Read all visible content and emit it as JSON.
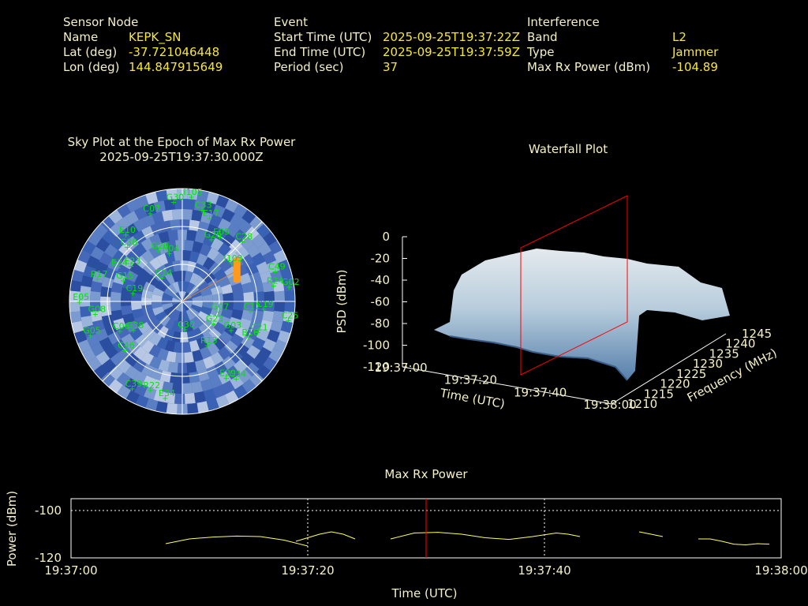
{
  "info": {
    "sensor": {
      "header": "Sensor Node",
      "name_label": "Name",
      "name": "KEPK_SN",
      "lat_label": "Lat (deg)",
      "lat": "-37.721046448",
      "lon_label": "Lon (deg)",
      "lon": "144.847915649"
    },
    "event": {
      "header": "Event",
      "start_label": "Start Time (UTC)",
      "start": "2025-09-25T19:37:22Z",
      "end_label": "End Time (UTC)",
      "end": "2025-09-25T19:37:59Z",
      "period_label": "Period (sec)",
      "period": "37"
    },
    "interference": {
      "header": "Interference",
      "band_label": "Band",
      "band": "L2",
      "type_label": "Type",
      "type": "Jammer",
      "power_label": "Max Rx Power (dBm)",
      "power": "-104.89"
    }
  },
  "colors": {
    "text": "#f5f0c8",
    "value": "#f5e63c",
    "sat": "#00e600",
    "marker": "#ff0000",
    "line": "#ffff66"
  },
  "chart_data": [
    {
      "type": "scatter",
      "title": "Sky Plot at the Epoch of Max Rx Power",
      "subtitle": "2025-09-25T19:37:30.000Z",
      "projection": "polar",
      "satellites": [
        {
          "id": "I105",
          "az": 5,
          "el": 84
        },
        {
          "id": "C07",
          "az": 340,
          "el": 75
        },
        {
          "id": "G30",
          "az": 355,
          "el": 80
        },
        {
          "id": "C33",
          "az": 12,
          "el": 75
        },
        {
          "id": "E10",
          "az": 320,
          "el": 70
        },
        {
          "id": "C38",
          "az": 315,
          "el": 62
        },
        {
          "id": "E17",
          "az": 18,
          "el": 70
        },
        {
          "id": "C28",
          "az": 45,
          "el": 68
        },
        {
          "id": "E09",
          "az": 30,
          "el": 60
        },
        {
          "id": "G26",
          "az": 25,
          "el": 55
        },
        {
          "id": "E34",
          "az": 298,
          "el": 58
        },
        {
          "id": "E23",
          "az": 305,
          "el": 50
        },
        {
          "id": "G20",
          "az": 335,
          "el": 45
        },
        {
          "id": "R04",
          "az": 345,
          "el": 40
        },
        {
          "id": "I103",
          "az": 52,
          "el": 50
        },
        {
          "id": "C49",
          "az": 72,
          "el": 78
        },
        {
          "id": "R24",
          "az": 80,
          "el": 74
        },
        {
          "id": "G02",
          "az": 82,
          "el": 86
        },
        {
          "id": "G15",
          "az": 290,
          "el": 50
        },
        {
          "id": "R17",
          "az": 285,
          "el": 70
        },
        {
          "id": "C19",
          "az": 280,
          "el": 40
        },
        {
          "id": "C14",
          "az": 320,
          "el": 25
        },
        {
          "id": "E05",
          "az": 270,
          "el": 82
        },
        {
          "id": "G08",
          "az": 262,
          "el": 70
        },
        {
          "id": "G05",
          "az": 250,
          "el": 78
        },
        {
          "id": "C06",
          "az": 245,
          "el": 55
        },
        {
          "id": "G38",
          "az": 240,
          "el": 45
        },
        {
          "id": "C46",
          "az": 230,
          "el": 60
        },
        {
          "id": "C39",
          "az": 210,
          "el": 80
        },
        {
          "id": "R22",
          "az": 200,
          "el": 75
        },
        {
          "id": "E34",
          "az": 190,
          "el": 78
        },
        {
          "id": "C30",
          "az": 175,
          "el": 22
        },
        {
          "id": "R13",
          "az": 150,
          "el": 40
        },
        {
          "id": "G23",
          "az": 125,
          "el": 30
        },
        {
          "id": "G03",
          "az": 120,
          "el": 45
        },
        {
          "id": "B16",
          "az": 118,
          "el": 60
        },
        {
          "id": "C21",
          "az": 112,
          "el": 65
        },
        {
          "id": "C25",
          "az": 100,
          "el": 86
        },
        {
          "id": "C19",
          "az": 95,
          "el": 65
        },
        {
          "id": "E29",
          "az": 150,
          "el": 70
        },
        {
          "id": "C34",
          "az": 145,
          "el": 75
        },
        {
          "id": "G07",
          "az": 105,
          "el": 30
        },
        {
          "id": "C12",
          "az": 98,
          "el": 55
        }
      ],
      "interferer_direction_az": 60
    },
    {
      "type": "area",
      "title": "Waterfall Plot",
      "xlabel": "Time (UTC)",
      "ylabel": "Frequency (MHz)",
      "zlabel": "PSD (dBm)",
      "x_ticks": [
        "19:37:00",
        "19:37:20",
        "19:37:40",
        "19:38:00"
      ],
      "y_ticks": [
        1210,
        1215,
        1220,
        1225,
        1230,
        1235,
        1240,
        1245
      ],
      "z_ticks": [
        0,
        -20,
        -40,
        -60,
        -80,
        -100,
        -120
      ],
      "zlim": [
        -120,
        0
      ],
      "marker_time": "19:37:30"
    },
    {
      "type": "line",
      "title": "Max Rx Power",
      "xlabel": "Time (UTC)",
      "ylabel": "Power (dBm)",
      "x_ticks": [
        "19:37:00",
        "19:37:20",
        "19:37:40",
        "19:38:00"
      ],
      "y_ticks": [
        -100,
        -120
      ],
      "xlim": [
        0,
        60
      ],
      "ylim": [
        -120,
        -95
      ],
      "grid": true,
      "marker_time_sec": 30,
      "segments": [
        [
          [
            8,
            -114
          ],
          [
            10,
            -112
          ],
          [
            12,
            -111.2
          ],
          [
            14,
            -110.8
          ],
          [
            16,
            -111
          ],
          [
            18,
            -112.5
          ],
          [
            20,
            -115
          ]
        ],
        [
          [
            19,
            -113
          ],
          [
            21,
            -110
          ],
          [
            22,
            -109
          ],
          [
            23,
            -110
          ],
          [
            24,
            -112
          ]
        ],
        [
          [
            27,
            -112
          ],
          [
            29,
            -109.5
          ],
          [
            31,
            -109.2
          ],
          [
            33,
            -110
          ],
          [
            35,
            -111.5
          ],
          [
            37,
            -112.2
          ],
          [
            39,
            -111
          ],
          [
            41,
            -109.5
          ],
          [
            42,
            -110
          ],
          [
            43,
            -111
          ]
        ],
        [
          [
            48,
            -109
          ],
          [
            49,
            -110
          ],
          [
            50,
            -111
          ]
        ],
        [
          [
            53,
            -112
          ],
          [
            54,
            -112
          ],
          [
            55,
            -113
          ],
          [
            56,
            -114.2
          ],
          [
            57,
            -114.5
          ],
          [
            58,
            -114
          ],
          [
            59,
            -114.2
          ]
        ]
      ]
    }
  ]
}
